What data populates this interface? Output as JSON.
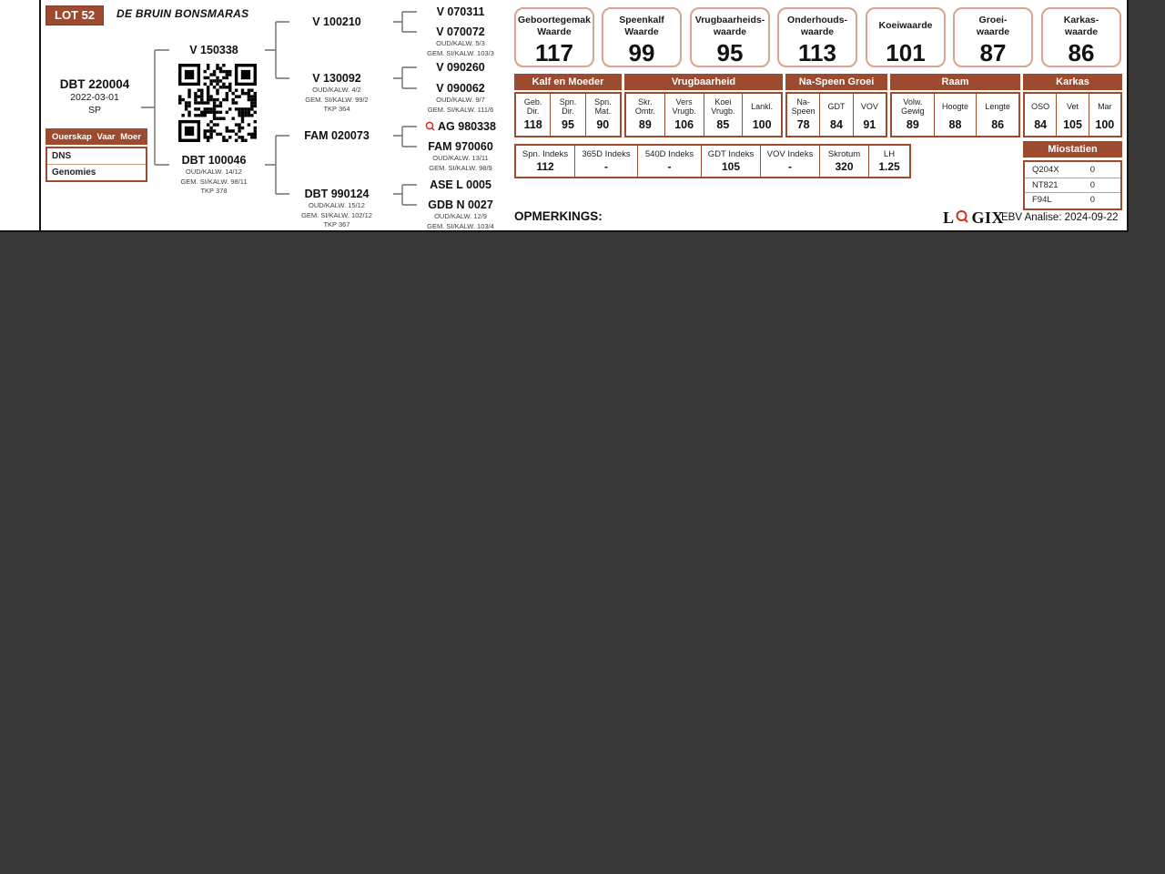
{
  "colors": {
    "brand_brown": "#9E4A2F",
    "card_border": "#D9A38C",
    "viewer_background": "#393939",
    "logix_red": "#D42E1C"
  },
  "header": {
    "lot": "LOT 52",
    "farm": "DE BRUIN BONSMARAS"
  },
  "animal": {
    "id": "DBT 220004",
    "birth_date": "2022-03-01",
    "status": "SP"
  },
  "parentage": {
    "columns": [
      "Ouerskap",
      "Vaar",
      "Moer"
    ],
    "rows": [
      "DNS",
      "Genomies"
    ]
  },
  "pedigree": {
    "sire": {
      "id": "V 150338"
    },
    "dam": {
      "id": "DBT 100046",
      "sub": [
        "OUD/KALW. 14/12",
        "GEM. SI/KALW. 98/11",
        "TKP 378"
      ]
    },
    "gen3": [
      {
        "id": "V 100210"
      },
      {
        "id": "V 130092",
        "sub": [
          "OUD/KALW. 4/2",
          "GEM. SI/KALW. 99/2",
          "TKP 364"
        ]
      },
      {
        "id": "FAM 020073"
      },
      {
        "id": "DBT 990124",
        "sub": [
          "OUD/KALW. 15/12",
          "GEM. SI/KALW. 102/12",
          "TKP 367"
        ]
      }
    ],
    "gen4": [
      {
        "id": "V 070311"
      },
      {
        "id": "V 070072",
        "sub": [
          "OUD/KALW. 5/3",
          "GEM. SI/KALW. 103/3"
        ]
      },
      {
        "id": "V 090260"
      },
      {
        "id": "V 090062",
        "sub": [
          "OUD/KALW. 9/7",
          "GEM. SI/KALW. 111/6"
        ]
      },
      {
        "id": "AG 980338"
      },
      {
        "id": "FAM 970060",
        "sub": [
          "OUD/KALW. 13/11",
          "GEM. SI/KALW. 98/9"
        ]
      },
      {
        "id": "ASE L 0005"
      },
      {
        "id": "GDB N 0027",
        "sub": [
          "OUD/KALW. 12/9",
          "GEM. SI/KALW. 103/4"
        ]
      }
    ]
  },
  "cards": [
    {
      "line1": "Geboortegemak",
      "line2": "Waarde",
      "value": "117"
    },
    {
      "line1": "Speenkalf",
      "line2": "Waarde",
      "value": "99"
    },
    {
      "line1": "Vrugbaarheids-",
      "line2": "waarde",
      "value": "95"
    },
    {
      "line1": "Onderhouds-",
      "line2": "waarde",
      "value": "113"
    },
    {
      "line1": "Koeiwaarde",
      "line2": "",
      "value": "101"
    },
    {
      "line1": "Groei-",
      "line2": "waarde",
      "value": "87"
    },
    {
      "line1": "Karkas-",
      "line2": "waarde",
      "value": "86"
    }
  ],
  "ebv_table": {
    "groups": [
      {
        "header": "Kalf en Moeder",
        "cols": [
          {
            "h1": "Geb.",
            "h2": "Dir.",
            "v": "118"
          },
          {
            "h1": "Spn.",
            "h2": "Dir.",
            "v": "95"
          },
          {
            "h1": "Spn.",
            "h2": "Mat.",
            "v": "90"
          }
        ]
      },
      {
        "header": "Vrugbaarheid",
        "cols": [
          {
            "h1": "Skr.",
            "h2": "Omtr.",
            "v": "89"
          },
          {
            "h1": "Vers",
            "h2": "Vrugb.",
            "v": "106"
          },
          {
            "h1": "Koei",
            "h2": "Vrugb.",
            "v": "85"
          },
          {
            "h1": "Lankl.",
            "h2": "",
            "v": "100"
          }
        ]
      },
      {
        "header": "Na-Speen Groei",
        "cols": [
          {
            "h1": "Na-",
            "h2": "Speen",
            "v": "78"
          },
          {
            "h1": "GDT",
            "h2": "",
            "v": "84"
          },
          {
            "h1": "VOV",
            "h2": "",
            "v": "91"
          }
        ]
      },
      {
        "header": "Raam",
        "cols": [
          {
            "h1": "Volw.",
            "h2": "Gewig",
            "v": "89"
          },
          {
            "h1": "Hoogte",
            "h2": "",
            "v": "88"
          },
          {
            "h1": "Lengte",
            "h2": "",
            "v": "86"
          }
        ]
      },
      {
        "header": "Karkas",
        "cols": [
          {
            "h1": "OSO",
            "h2": "",
            "v": "84"
          },
          {
            "h1": "Vet",
            "h2": "",
            "v": "105"
          },
          {
            "h1": "Mar",
            "h2": "",
            "v": "100"
          }
        ]
      }
    ]
  },
  "indeks_table": {
    "cells": [
      {
        "label": "Spn. Indeks",
        "value": "112"
      },
      {
        "label": "365D Indeks",
        "value": "-"
      },
      {
        "label": "540D Indeks",
        "value": "-"
      },
      {
        "label": "GDT Indeks",
        "value": "105"
      },
      {
        "label": "VOV Indeks",
        "value": "-"
      },
      {
        "label": "Skrotum",
        "value": "320"
      },
      {
        "label": "LH",
        "value": "1.25"
      }
    ]
  },
  "miostatien": {
    "header": "Miostatien",
    "rows": [
      {
        "gene": "Q204X",
        "value": "0"
      },
      {
        "gene": "NT821",
        "value": "0"
      },
      {
        "gene": "F94L",
        "value": "0"
      }
    ]
  },
  "footer": {
    "opmerkings": "OPMERKINGS:",
    "logix_l": "L",
    "logix_gix": "GIX",
    "ebv_analise": "EBV Analise: 2024-09-22"
  }
}
